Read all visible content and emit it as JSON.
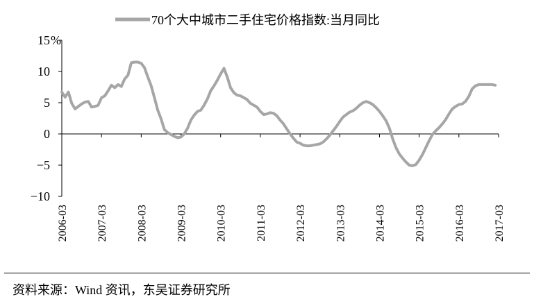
{
  "chart_data": {
    "type": "line",
    "title": "",
    "xlabel": "",
    "ylabel": "",
    "y_unit": "%",
    "ylim": [
      -10,
      15
    ],
    "y_ticks": [
      -10,
      -5,
      0,
      5,
      10,
      15
    ],
    "x_tick_labels": [
      "2006-03",
      "2007-03",
      "2008-03",
      "2009-03",
      "2010-03",
      "2011-03",
      "2012-03",
      "2013-03",
      "2014-03",
      "2015-03",
      "2016-03",
      "2017-03"
    ],
    "legend_position": "top",
    "grid": false,
    "series": [
      {
        "name": "70个大中城市二手住宅价格指数:当月同比",
        "color": "#a6a6a6",
        "points": [
          [
            "2006-03",
            6.7
          ],
          [
            "2006-04",
            5.9
          ],
          [
            "2006-05",
            6.7
          ],
          [
            "2006-06",
            4.9
          ],
          [
            "2006-07",
            4.0
          ],
          [
            "2006-08",
            4.4
          ],
          [
            "2006-09",
            4.8
          ],
          [
            "2006-10",
            5.1
          ],
          [
            "2006-11",
            5.2
          ],
          [
            "2006-12",
            4.3
          ],
          [
            "2007-01",
            4.4
          ],
          [
            "2007-02",
            4.6
          ],
          [
            "2007-03",
            5.8
          ],
          [
            "2007-04",
            6.1
          ],
          [
            "2007-05",
            6.9
          ],
          [
            "2007-06",
            7.8
          ],
          [
            "2007-07",
            7.4
          ],
          [
            "2007-08",
            7.9
          ],
          [
            "2007-09",
            7.6
          ],
          [
            "2007-10",
            8.8
          ],
          [
            "2007-11",
            9.4
          ],
          [
            "2007-12",
            11.4
          ],
          [
            "2008-01",
            11.5
          ],
          [
            "2008-02",
            11.5
          ],
          [
            "2008-03",
            11.3
          ],
          [
            "2008-04",
            10.6
          ],
          [
            "2008-05",
            9.1
          ],
          [
            "2008-06",
            7.7
          ],
          [
            "2008-07",
            5.8
          ],
          [
            "2008-08",
            3.8
          ],
          [
            "2008-09",
            2.4
          ],
          [
            "2008-10",
            0.7
          ],
          [
            "2008-11",
            0.2
          ],
          [
            "2008-12",
            -0.1
          ],
          [
            "2009-01",
            -0.4
          ],
          [
            "2009-02",
            -0.6
          ],
          [
            "2009-03",
            -0.5
          ],
          [
            "2009-04",
            0.0
          ],
          [
            "2009-05",
            0.9
          ],
          [
            "2009-06",
            2.2
          ],
          [
            "2009-07",
            3.0
          ],
          [
            "2009-08",
            3.6
          ],
          [
            "2009-09",
            3.8
          ],
          [
            "2009-10",
            4.6
          ],
          [
            "2009-11",
            5.6
          ],
          [
            "2009-12",
            6.9
          ],
          [
            "2010-01",
            7.7
          ],
          [
            "2010-02",
            8.6
          ],
          [
            "2010-03",
            9.6
          ],
          [
            "2010-04",
            10.5
          ],
          [
            "2010-05",
            9.1
          ],
          [
            "2010-06",
            7.4
          ],
          [
            "2010-07",
            6.6
          ],
          [
            "2010-08",
            6.2
          ],
          [
            "2010-09",
            6.1
          ],
          [
            "2010-10",
            5.8
          ],
          [
            "2010-11",
            5.5
          ],
          [
            "2010-12",
            4.9
          ],
          [
            "2011-01",
            4.6
          ],
          [
            "2011-02",
            4.3
          ],
          [
            "2011-03",
            3.6
          ],
          [
            "2011-04",
            3.1
          ],
          [
            "2011-05",
            3.2
          ],
          [
            "2011-06",
            3.4
          ],
          [
            "2011-07",
            3.3
          ],
          [
            "2011-08",
            2.9
          ],
          [
            "2011-09",
            2.2
          ],
          [
            "2011-10",
            1.6
          ],
          [
            "2011-11",
            0.8
          ],
          [
            "2011-12",
            0.0
          ],
          [
            "2012-01",
            -0.7
          ],
          [
            "2012-02",
            -1.3
          ],
          [
            "2012-03",
            -1.5
          ],
          [
            "2012-04",
            -1.8
          ],
          [
            "2012-05",
            -1.9
          ],
          [
            "2012-06",
            -1.9
          ],
          [
            "2012-07",
            -1.8
          ],
          [
            "2012-08",
            -1.7
          ],
          [
            "2012-09",
            -1.6
          ],
          [
            "2012-10",
            -1.3
          ],
          [
            "2012-11",
            -0.8
          ],
          [
            "2012-12",
            -0.2
          ],
          [
            "2013-01",
            0.5
          ],
          [
            "2013-02",
            1.2
          ],
          [
            "2013-03",
            2.0
          ],
          [
            "2013-04",
            2.7
          ],
          [
            "2013-05",
            3.1
          ],
          [
            "2013-06",
            3.5
          ],
          [
            "2013-07",
            3.7
          ],
          [
            "2013-08",
            4.1
          ],
          [
            "2013-09",
            4.6
          ],
          [
            "2013-10",
            5.0
          ],
          [
            "2013-11",
            5.2
          ],
          [
            "2013-12",
            5.0
          ],
          [
            "2014-01",
            4.7
          ],
          [
            "2014-02",
            4.2
          ],
          [
            "2014-03",
            3.6
          ],
          [
            "2014-04",
            2.9
          ],
          [
            "2014-05",
            2.1
          ],
          [
            "2014-06",
            0.9
          ],
          [
            "2014-07",
            -0.8
          ],
          [
            "2014-08",
            -2.2
          ],
          [
            "2014-09",
            -3.2
          ],
          [
            "2014-10",
            -3.9
          ],
          [
            "2014-11",
            -4.5
          ],
          [
            "2014-12",
            -5.0
          ],
          [
            "2015-01",
            -5.1
          ],
          [
            "2015-02",
            -4.9
          ],
          [
            "2015-03",
            -4.2
          ],
          [
            "2015-04",
            -3.3
          ],
          [
            "2015-05",
            -2.2
          ],
          [
            "2015-06",
            -1.1
          ],
          [
            "2015-07",
            -0.1
          ],
          [
            "2015-08",
            0.5
          ],
          [
            "2015-09",
            1.0
          ],
          [
            "2015-10",
            1.6
          ],
          [
            "2015-11",
            2.3
          ],
          [
            "2015-12",
            3.2
          ],
          [
            "2016-01",
            4.0
          ],
          [
            "2016-02",
            4.4
          ],
          [
            "2016-03",
            4.7
          ],
          [
            "2016-04",
            4.8
          ],
          [
            "2016-05",
            5.2
          ],
          [
            "2016-06",
            6.0
          ],
          [
            "2016-07",
            7.2
          ],
          [
            "2016-08",
            7.7
          ],
          [
            "2016-09",
            7.9
          ],
          [
            "2016-10",
            7.9
          ],
          [
            "2016-11",
            7.9
          ],
          [
            "2016-12",
            7.9
          ],
          [
            "2017-01",
            7.9
          ],
          [
            "2017-02",
            7.8
          ]
        ]
      }
    ]
  },
  "source": "资料来源：Wind 资讯，东吴证券研究所"
}
